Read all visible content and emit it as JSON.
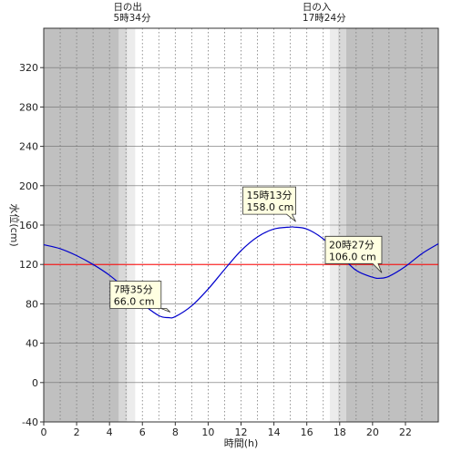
{
  "chart_data": {
    "type": "line",
    "xlabel": "時間(h)",
    "ylabel": "水位(cm)",
    "xlim": [
      0,
      24
    ],
    "ylim": [
      -40,
      360
    ],
    "x_ticks": [
      0,
      2,
      4,
      6,
      8,
      10,
      12,
      14,
      16,
      18,
      20,
      22
    ],
    "y_ticks": [
      -40,
      0,
      40,
      80,
      120,
      160,
      200,
      240,
      280,
      320
    ],
    "grid": "vertical dotted every 1h, horizontal every 40cm",
    "reference_line": {
      "y": 120,
      "color": "#ff0000"
    },
    "sunrise": {
      "label": "日の出",
      "time": "5時34分",
      "hour": 5.567
    },
    "sunset": {
      "label": "日の入",
      "time": "17時24分",
      "hour": 17.4
    },
    "series": [
      {
        "color": "#0000cc",
        "x": [
          0,
          1,
          2,
          3,
          4,
          5,
          6,
          7,
          7.583,
          8,
          9,
          10,
          11,
          12,
          13,
          14,
          15,
          15.217,
          16,
          17,
          18,
          19,
          20,
          20.45,
          21,
          22,
          23,
          24
        ],
        "y": [
          140,
          136,
          129,
          120,
          109,
          95,
          80,
          68,
          66,
          67,
          78,
          95,
          115,
          134,
          148,
          156,
          158,
          158,
          156,
          146,
          130,
          114,
          107,
          106,
          108,
          118,
          131,
          141
        ]
      }
    ],
    "annotations": [
      {
        "time": "7時35分",
        "value": "66.0 cm",
        "x": 7.583,
        "y": 66
      },
      {
        "time": "15時13分",
        "value": "158.0 cm",
        "x": 15.217,
        "y": 158
      },
      {
        "time": "20時27分",
        "value": "106.0 cm",
        "x": 20.45,
        "y": 106
      }
    ],
    "colors": {
      "night": "#c0c0c0",
      "twilight_dark": "#d8d8d8",
      "twilight_light": "#ececec",
      "day": "#ffffff",
      "annotation_bg": "#ffffe1"
    }
  }
}
